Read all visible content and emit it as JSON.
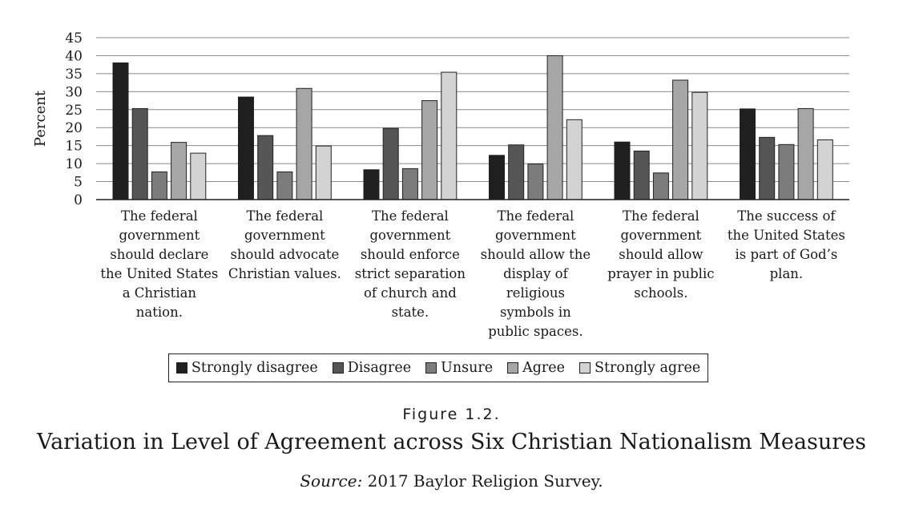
{
  "chart_data": {
    "type": "bar",
    "categories": [
      "The federal\ngovernment\nshould declare\nthe United States\na Christian\nnation.",
      "The federal\ngovernment\nshould advocate\nChristian values.",
      "The federal\ngovernment\nshould enforce\nstrict separation\nof church and\nstate.",
      "The federal\ngovernment\nshould allow the\ndisplay of\nreligious\nsymbols in\npublic spaces.",
      "The federal\ngovernment\nshould allow\nprayer in public\nschools.",
      "The success of\nthe United States\nis part of God’s\nplan."
    ],
    "series": [
      {
        "name": "Strongly disagree",
        "color": "#1f1f1f",
        "values": [
          38,
          28.5,
          8.3,
          12.3,
          16,
          25.2
        ]
      },
      {
        "name": "Disagree",
        "color": "#555555",
        "values": [
          25.3,
          17.8,
          19.8,
          15.2,
          13.5,
          17.3
        ]
      },
      {
        "name": "Unsure",
        "color": "#7c7c7c",
        "values": [
          7.7,
          7.7,
          8.6,
          9.9,
          7.4,
          15.3
        ]
      },
      {
        "name": "Agree",
        "color": "#a6a6a6",
        "values": [
          15.9,
          30.9,
          27.5,
          40,
          33.2,
          25.3
        ]
      },
      {
        "name": "Strongly agree",
        "color": "#d3d3d3",
        "values": [
          12.9,
          14.9,
          35.4,
          22.2,
          29.8,
          16.6
        ]
      }
    ],
    "ylabel": "Percent",
    "ylim": [
      0,
      45
    ],
    "yticks": [
      0,
      5,
      10,
      15,
      20,
      25,
      30,
      35,
      40,
      45
    ],
    "grid": true,
    "legend_position": "bottom"
  },
  "figure": {
    "label": "Figure 1.2.",
    "title": "Variation in Level of Agreement across Six Christian Nationalism Measures",
    "source_prefix": "Source:",
    "source_text": " 2017 Baylor Religion Survey."
  }
}
